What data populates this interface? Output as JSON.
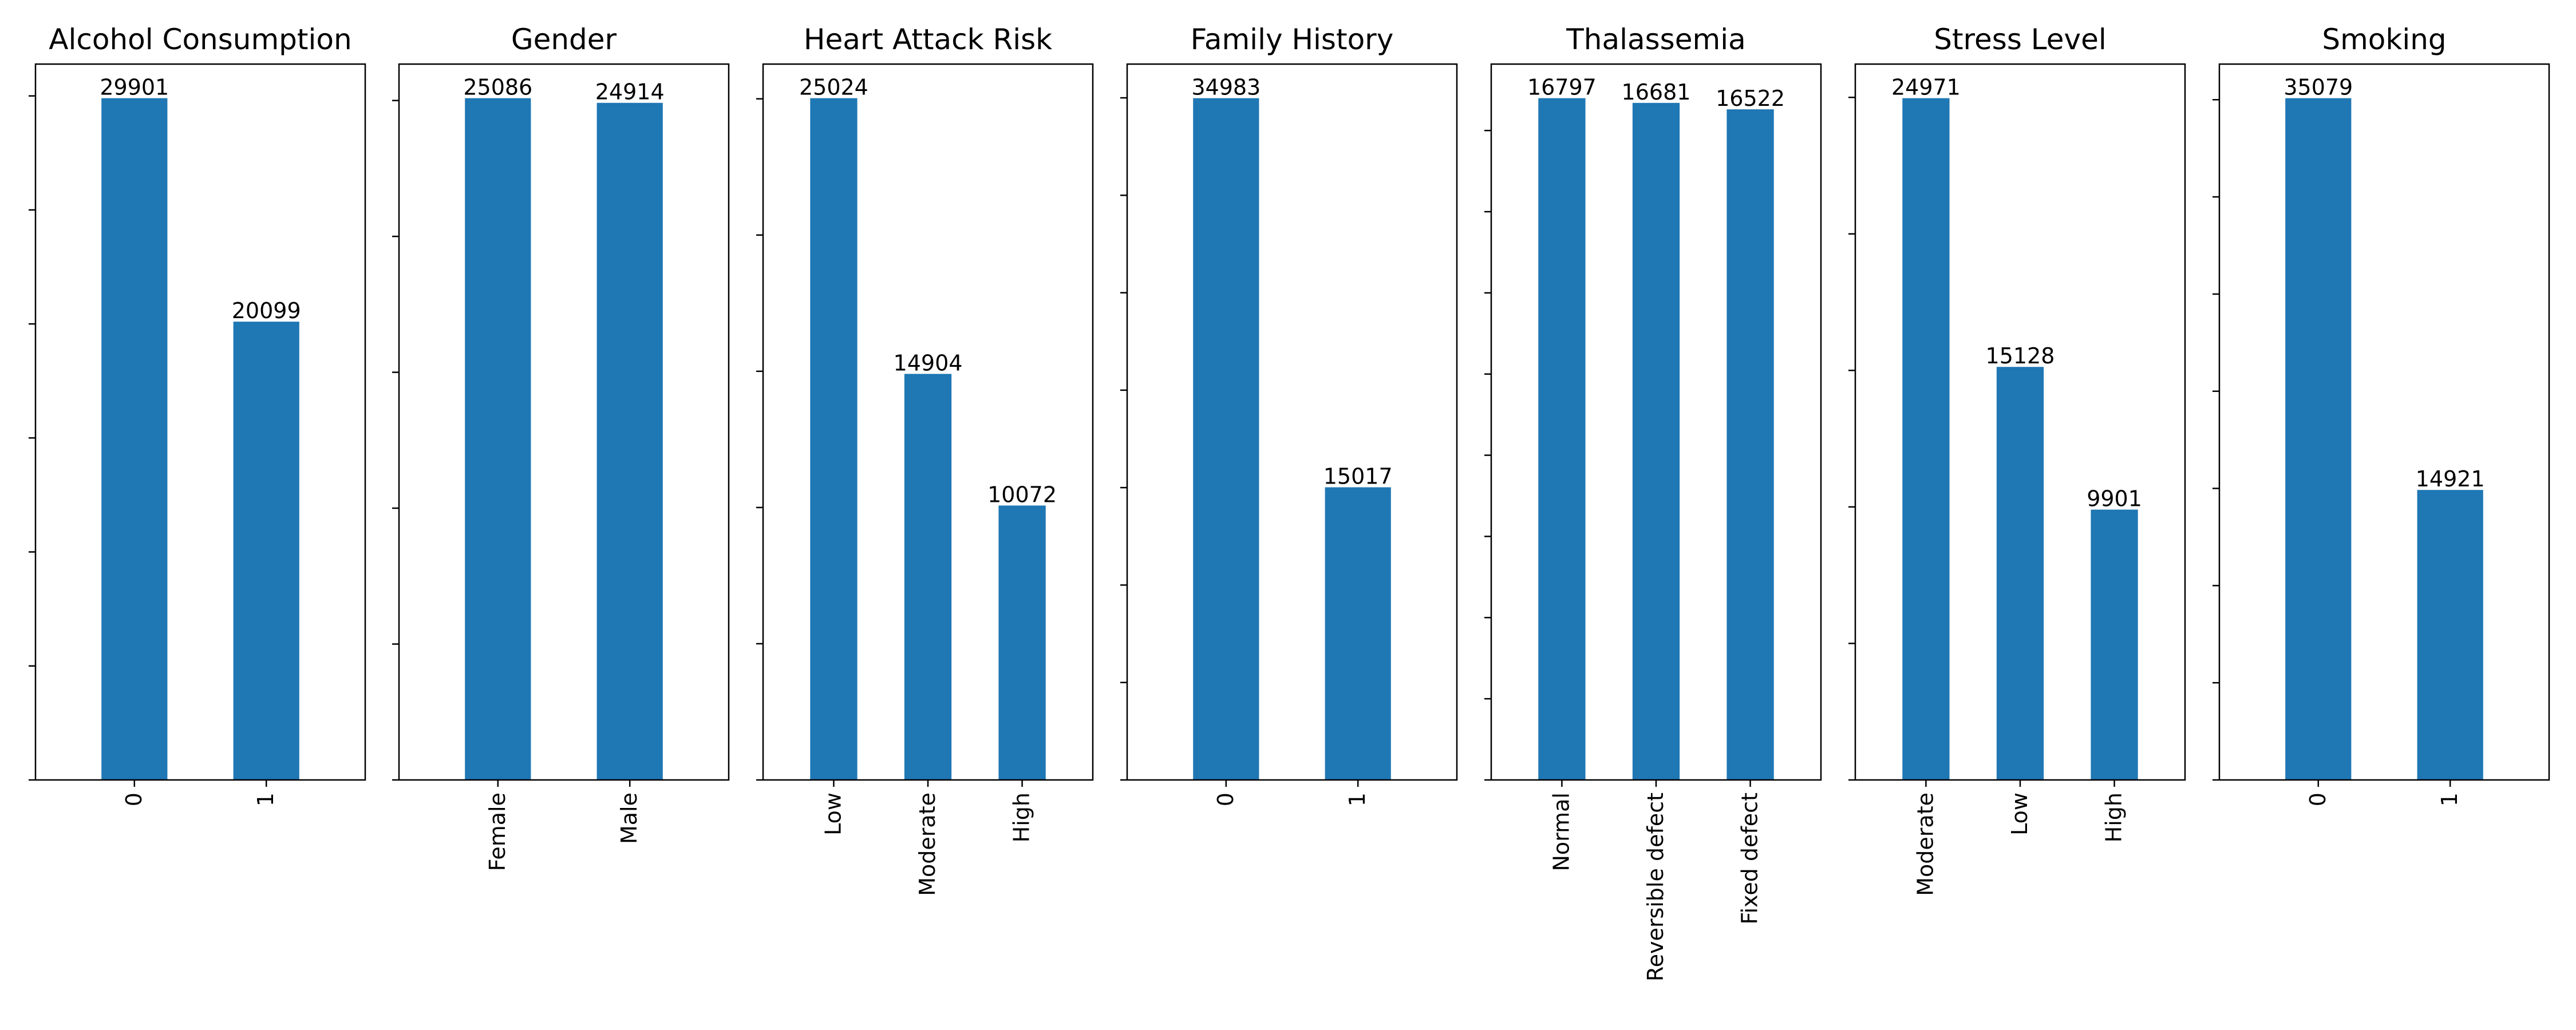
{
  "bar_color": "#1f77b4",
  "chart_data": [
    {
      "type": "bar",
      "title": "Alcohol Consumption",
      "categories": [
        "0",
        "1"
      ],
      "values": [
        29901,
        20099
      ],
      "y_step": 5000,
      "grid": false
    },
    {
      "type": "bar",
      "title": "Gender",
      "categories": [
        "Female",
        "Male"
      ],
      "values": [
        25086,
        24914
      ],
      "y_step": 5000,
      "grid": false
    },
    {
      "type": "bar",
      "title": "Heart Attack Risk",
      "categories": [
        "Low",
        "Moderate",
        "High"
      ],
      "values": [
        25024,
        14904,
        10072
      ],
      "y_step": 5000,
      "grid": false
    },
    {
      "type": "bar",
      "title": "Family History",
      "categories": [
        "0",
        "1"
      ],
      "values": [
        34983,
        15017
      ],
      "y_step": 5000,
      "grid": false
    },
    {
      "type": "bar",
      "title": "Thalassemia",
      "categories": [
        "Normal",
        "Reversible defect",
        "Fixed defect"
      ],
      "values": [
        16797,
        16681,
        16522
      ],
      "y_step": 2000,
      "grid": false
    },
    {
      "type": "bar",
      "title": "Stress Level",
      "categories": [
        "Moderate",
        "Low",
        "High"
      ],
      "values": [
        24971,
        15128,
        9901
      ],
      "y_step": 5000,
      "grid": false
    },
    {
      "type": "bar",
      "title": "Smoking",
      "categories": [
        "0",
        "1"
      ],
      "values": [
        35079,
        14921
      ],
      "y_step": 5000,
      "grid": false
    }
  ]
}
